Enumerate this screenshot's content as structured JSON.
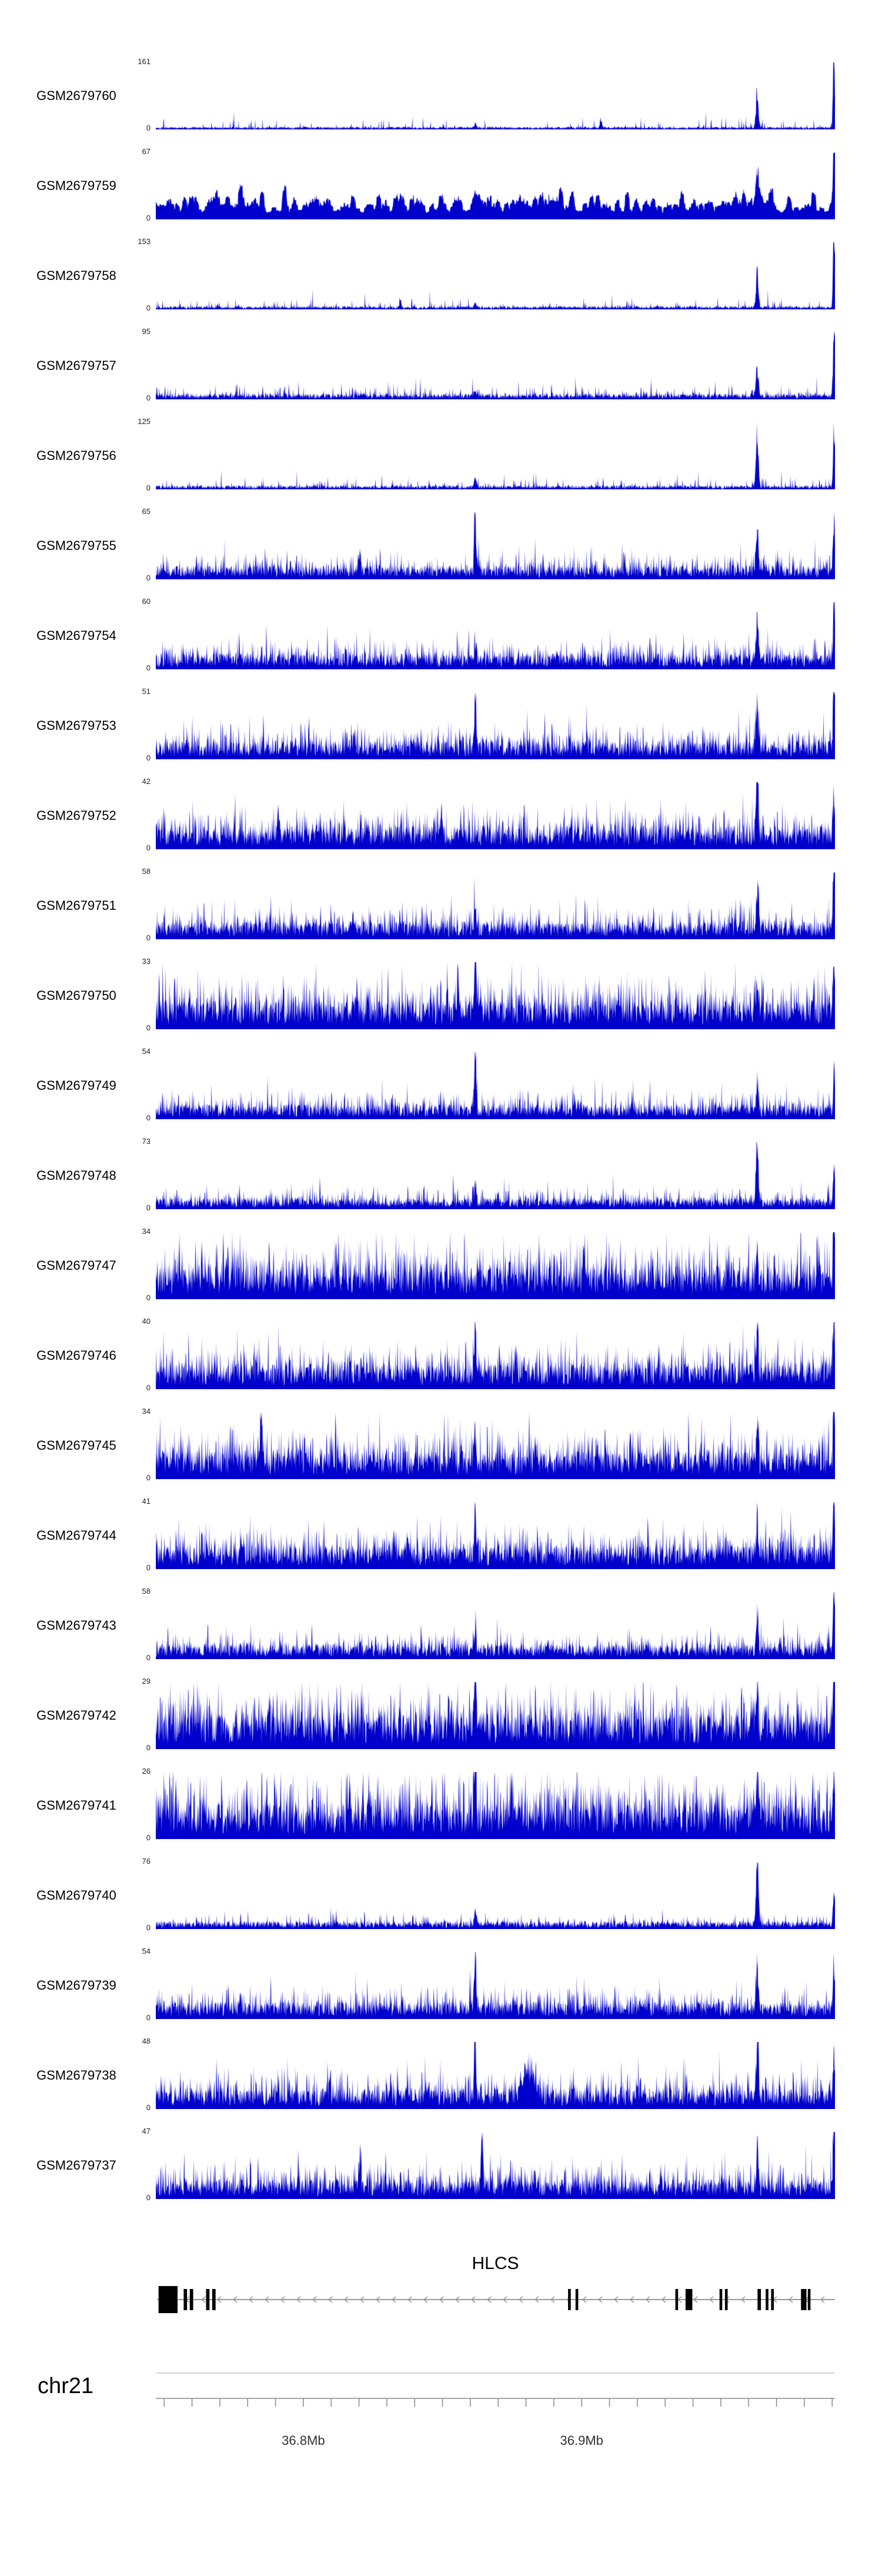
{
  "chromosome": {
    "label": "chr21"
  },
  "gene": {
    "name": "HLCS",
    "strand": "-",
    "exons": [
      {
        "x": 0.004,
        "w": 0.028,
        "tall": true
      },
      {
        "x": 0.041,
        "w": 0.005,
        "tall": false
      },
      {
        "x": 0.05,
        "w": 0.005,
        "tall": false
      },
      {
        "x": 0.074,
        "w": 0.005,
        "tall": false
      },
      {
        "x": 0.083,
        "w": 0.005,
        "tall": false
      },
      {
        "x": 0.607,
        "w": 0.004,
        "tall": false
      },
      {
        "x": 0.618,
        "w": 0.004,
        "tall": false
      },
      {
        "x": 0.765,
        "w": 0.004,
        "tall": false
      },
      {
        "x": 0.78,
        "w": 0.01,
        "tall": false
      },
      {
        "x": 0.83,
        "w": 0.004,
        "tall": false
      },
      {
        "x": 0.838,
        "w": 0.004,
        "tall": false
      },
      {
        "x": 0.886,
        "w": 0.005,
        "tall": false
      },
      {
        "x": 0.898,
        "w": 0.004,
        "tall": false
      },
      {
        "x": 0.906,
        "w": 0.004,
        "tall": false
      },
      {
        "x": 0.95,
        "w": 0.008,
        "tall": false
      },
      {
        "x": 0.96,
        "w": 0.004,
        "tall": false
      }
    ]
  },
  "chart_data": {
    "type": "area",
    "signal_color": "#0000CC",
    "x_axis": {
      "chromosome": "chr21",
      "start_mb": 36.747,
      "end_mb": 36.991,
      "tick_step_mb": 0.01,
      "labels": [
        {
          "text": "36.8Mb",
          "mb": 36.8
        },
        {
          "text": "36.9Mb",
          "mb": 36.9
        }
      ]
    },
    "tracks": [
      {
        "label": "GSM2679760",
        "ymax": 161,
        "ymin": 0,
        "profile": {
          "seed": 101,
          "base": 0.025,
          "spike_prob": 0.05,
          "spike_h": 0.09,
          "smooth": 0,
          "peaks": [
            {
              "x": 0.885,
              "h": 0.55,
              "w": 0.0025
            },
            {
              "x": 0.998,
              "h": 1.2,
              "w": 0.0018
            },
            {
              "x": 0.655,
              "h": 0.12,
              "w": 0.002
            },
            {
              "x": 0.47,
              "h": 0.07,
              "w": 0.002
            }
          ]
        }
      },
      {
        "label": "GSM2679759",
        "ymax": 67,
        "ymin": 0,
        "profile": {
          "seed": 102,
          "base": 0.13,
          "spike_prob": 0.18,
          "spike_h": 0.55,
          "smooth": 5,
          "peaks": [
            {
              "x": 0.885,
              "h": 0.55,
              "w": 0.003
            },
            {
              "x": 0.998,
              "h": 1.1,
              "w": 0.002
            },
            {
              "x": 0.47,
              "h": 0.2,
              "w": 0.004
            }
          ]
        }
      },
      {
        "label": "GSM2679758",
        "ymax": 153,
        "ymin": 0,
        "profile": {
          "seed": 103,
          "base": 0.03,
          "spike_prob": 0.07,
          "spike_h": 0.08,
          "smooth": 0,
          "peaks": [
            {
              "x": 0.885,
              "h": 0.52,
              "w": 0.0025
            },
            {
              "x": 0.998,
              "h": 1.2,
              "w": 0.0018
            },
            {
              "x": 0.36,
              "h": 0.1,
              "w": 0.002
            },
            {
              "x": 0.47,
              "h": 0.08,
              "w": 0.002
            }
          ]
        }
      },
      {
        "label": "GSM2679757",
        "ymax": 95,
        "ymin": 0,
        "profile": {
          "seed": 104,
          "base": 0.05,
          "spike_prob": 0.14,
          "spike_h": 0.09,
          "smooth": 0,
          "peaks": [
            {
              "x": 0.885,
              "h": 0.45,
              "w": 0.0025
            },
            {
              "x": 0.998,
              "h": 1.15,
              "w": 0.0018
            },
            {
              "x": 0.47,
              "h": 0.1,
              "w": 0.002
            }
          ]
        }
      },
      {
        "label": "GSM2679756",
        "ymax": 125,
        "ymin": 0,
        "profile": {
          "seed": 105,
          "base": 0.035,
          "spike_prob": 0.1,
          "spike_h": 0.08,
          "smooth": 0,
          "peaks": [
            {
              "x": 0.885,
              "h": 0.85,
              "w": 0.0025
            },
            {
              "x": 0.998,
              "h": 0.95,
              "w": 0.0018
            },
            {
              "x": 0.47,
              "h": 0.12,
              "w": 0.0025
            }
          ]
        }
      },
      {
        "label": "GSM2679755",
        "ymax": 65,
        "ymin": 0,
        "profile": {
          "seed": 106,
          "base": 0.12,
          "spike_prob": 0.25,
          "spike_h": 0.15,
          "smooth": 0,
          "peaks": [
            {
              "x": 0.47,
              "h": 0.88,
              "w": 0.002
            },
            {
              "x": 0.885,
              "h": 0.55,
              "w": 0.0025
            },
            {
              "x": 0.998,
              "h": 0.85,
              "w": 0.0018
            },
            {
              "x": 0.3,
              "h": 0.3,
              "w": 0.002
            }
          ]
        }
      },
      {
        "label": "GSM2679754",
        "ymax": 60,
        "ymin": 0,
        "profile": {
          "seed": 107,
          "base": 0.14,
          "spike_prob": 0.28,
          "spike_h": 0.15,
          "smooth": 0,
          "peaks": [
            {
              "x": 0.885,
              "h": 0.55,
              "w": 0.0025
            },
            {
              "x": 0.998,
              "h": 1.05,
              "w": 0.0018
            },
            {
              "x": 0.47,
              "h": 0.32,
              "w": 0.002
            }
          ]
        }
      },
      {
        "label": "GSM2679753",
        "ymax": 51,
        "ymin": 0,
        "profile": {
          "seed": 108,
          "base": 0.16,
          "spike_prob": 0.3,
          "spike_h": 0.17,
          "smooth": 0,
          "peaks": [
            {
              "x": 0.47,
              "h": 0.8,
              "w": 0.002
            },
            {
              "x": 0.885,
              "h": 0.5,
              "w": 0.0025
            },
            {
              "x": 0.998,
              "h": 1.1,
              "w": 0.0018
            }
          ]
        }
      },
      {
        "label": "GSM2679752",
        "ymax": 42,
        "ymin": 0,
        "profile": {
          "seed": 109,
          "base": 0.2,
          "spike_prob": 0.3,
          "spike_h": 0.2,
          "smooth": 0,
          "peaks": [
            {
              "x": 0.885,
              "h": 0.9,
              "w": 0.0025
            },
            {
              "x": 0.998,
              "h": 0.65,
              "w": 0.0018
            },
            {
              "x": 0.18,
              "h": 0.45,
              "w": 0.0025
            },
            {
              "x": 0.42,
              "h": 0.4,
              "w": 0.0025
            }
          ]
        }
      },
      {
        "label": "GSM2679751",
        "ymax": 58,
        "ymin": 0,
        "profile": {
          "seed": 110,
          "base": 0.15,
          "spike_prob": 0.28,
          "spike_h": 0.16,
          "smooth": 0,
          "peaks": [
            {
              "x": 0.885,
              "h": 0.5,
              "w": 0.0025
            },
            {
              "x": 0.998,
              "h": 1.1,
              "w": 0.0018
            },
            {
              "x": 0.47,
              "h": 0.35,
              "w": 0.002
            }
          ]
        }
      },
      {
        "label": "GSM2679750",
        "ymax": 33,
        "ymin": 0,
        "profile": {
          "seed": 111,
          "base": 0.25,
          "spike_prob": 0.35,
          "spike_h": 0.24,
          "smooth": 0,
          "peaks": [
            {
              "x": 0.47,
              "h": 1.0,
              "w": 0.002
            },
            {
              "x": 0.445,
              "h": 0.6,
              "w": 0.002
            },
            {
              "x": 0.998,
              "h": 0.75,
              "w": 0.0018
            },
            {
              "x": 0.885,
              "h": 0.45,
              "w": 0.002
            }
          ]
        }
      },
      {
        "label": "GSM2679749",
        "ymax": 54,
        "ymin": 0,
        "profile": {
          "seed": 112,
          "base": 0.13,
          "spike_prob": 0.25,
          "spike_h": 0.15,
          "smooth": 0,
          "peaks": [
            {
              "x": 0.47,
              "h": 0.95,
              "w": 0.002
            },
            {
              "x": 0.998,
              "h": 0.6,
              "w": 0.0018
            },
            {
              "x": 0.885,
              "h": 0.38,
              "w": 0.002
            }
          ]
        }
      },
      {
        "label": "GSM2679748",
        "ymax": 73,
        "ymin": 0,
        "profile": {
          "seed": 113,
          "base": 0.1,
          "spike_prob": 0.22,
          "spike_h": 0.12,
          "smooth": 0,
          "peaks": [
            {
              "x": 0.885,
              "h": 0.88,
              "w": 0.0025
            },
            {
              "x": 0.47,
              "h": 0.3,
              "w": 0.002
            },
            {
              "x": 0.998,
              "h": 0.55,
              "w": 0.0018
            }
          ]
        }
      },
      {
        "label": "GSM2679747",
        "ymax": 34,
        "ymin": 0,
        "profile": {
          "seed": 114,
          "base": 0.28,
          "spike_prob": 0.38,
          "spike_h": 0.25,
          "smooth": 0,
          "peaks": [
            {
              "x": 0.998,
              "h": 1.1,
              "w": 0.0018
            },
            {
              "x": 0.63,
              "h": 0.5,
              "w": 0.002
            },
            {
              "x": 0.885,
              "h": 0.45,
              "w": 0.002
            }
          ]
        }
      },
      {
        "label": "GSM2679746",
        "ymax": 40,
        "ymin": 0,
        "profile": {
          "seed": 115,
          "base": 0.22,
          "spike_prob": 0.34,
          "spike_h": 0.22,
          "smooth": 0,
          "peaks": [
            {
              "x": 0.47,
              "h": 0.8,
              "w": 0.002
            },
            {
              "x": 0.998,
              "h": 1.05,
              "w": 0.0018
            },
            {
              "x": 0.885,
              "h": 0.5,
              "w": 0.002
            }
          ]
        }
      },
      {
        "label": "GSM2679745",
        "ymax": 34,
        "ymin": 0,
        "profile": {
          "seed": 116,
          "base": 0.24,
          "spike_prob": 0.35,
          "spike_h": 0.24,
          "smooth": 0,
          "peaks": [
            {
              "x": 0.155,
              "h": 0.8,
              "w": 0.002
            },
            {
              "x": 0.998,
              "h": 1.05,
              "w": 0.0018
            },
            {
              "x": 0.885,
              "h": 0.6,
              "w": 0.002
            },
            {
              "x": 0.47,
              "h": 0.5,
              "w": 0.002
            }
          ]
        }
      },
      {
        "label": "GSM2679744",
        "ymax": 41,
        "ymin": 0,
        "profile": {
          "seed": 117,
          "base": 0.2,
          "spike_prob": 0.32,
          "spike_h": 0.2,
          "smooth": 0,
          "peaks": [
            {
              "x": 0.47,
              "h": 0.72,
              "w": 0.002
            },
            {
              "x": 0.885,
              "h": 0.6,
              "w": 0.002
            },
            {
              "x": 0.998,
              "h": 1.05,
              "w": 0.0018
            }
          ]
        }
      },
      {
        "label": "GSM2679743",
        "ymax": 58,
        "ymin": 0,
        "profile": {
          "seed": 118,
          "base": 0.13,
          "spike_prob": 0.25,
          "spike_h": 0.14,
          "smooth": 0,
          "peaks": [
            {
              "x": 0.885,
              "h": 0.5,
              "w": 0.002
            },
            {
              "x": 0.998,
              "h": 1.1,
              "w": 0.0018
            },
            {
              "x": 0.47,
              "h": 0.3,
              "w": 0.002
            }
          ]
        }
      },
      {
        "label": "GSM2679742",
        "ymax": 29,
        "ymin": 0,
        "profile": {
          "seed": 119,
          "base": 0.3,
          "spike_prob": 0.4,
          "spike_h": 0.27,
          "smooth": 0,
          "peaks": [
            {
              "x": 0.47,
              "h": 1.0,
              "w": 0.002
            },
            {
              "x": 0.998,
              "h": 1.05,
              "w": 0.0018
            },
            {
              "x": 0.885,
              "h": 0.5,
              "w": 0.002
            }
          ]
        }
      },
      {
        "label": "GSM2679741",
        "ymax": 26,
        "ymin": 0,
        "profile": {
          "seed": 120,
          "base": 0.3,
          "spike_prob": 0.4,
          "spike_h": 0.3,
          "smooth": 0,
          "peaks": [
            {
              "x": 0.47,
              "h": 1.05,
              "w": 0.002
            },
            {
              "x": 0.998,
              "h": 0.95,
              "w": 0.0018
            },
            {
              "x": 0.885,
              "h": 0.6,
              "w": 0.002
            }
          ]
        }
      },
      {
        "label": "GSM2679740",
        "ymax": 76,
        "ymin": 0,
        "profile": {
          "seed": 121,
          "base": 0.07,
          "spike_prob": 0.15,
          "spike_h": 0.08,
          "smooth": 0,
          "peaks": [
            {
              "x": 0.885,
              "h": 0.98,
              "w": 0.0025
            },
            {
              "x": 0.998,
              "h": 0.55,
              "w": 0.0018
            },
            {
              "x": 0.47,
              "h": 0.2,
              "w": 0.002
            }
          ]
        }
      },
      {
        "label": "GSM2679739",
        "ymax": 54,
        "ymin": 0,
        "profile": {
          "seed": 122,
          "base": 0.15,
          "spike_prob": 0.28,
          "spike_h": 0.16,
          "smooth": 0,
          "peaks": [
            {
              "x": 0.47,
              "h": 1.0,
              "w": 0.002
            },
            {
              "x": 0.885,
              "h": 0.6,
              "w": 0.0025
            },
            {
              "x": 0.998,
              "h": 0.9,
              "w": 0.0018
            }
          ]
        }
      },
      {
        "label": "GSM2679738",
        "ymax": 48,
        "ymin": 0,
        "profile": {
          "seed": 123,
          "base": 0.18,
          "spike_prob": 0.3,
          "spike_h": 0.18,
          "smooth": 0,
          "peaks": [
            {
              "x": 0.47,
              "h": 1.0,
              "w": 0.002
            },
            {
              "x": 0.55,
              "h": 0.4,
              "w": 0.012
            },
            {
              "x": 0.885,
              "h": 0.8,
              "w": 0.0025
            },
            {
              "x": 0.998,
              "h": 0.65,
              "w": 0.0018
            }
          ]
        }
      },
      {
        "label": "GSM2679737",
        "ymax": 47,
        "ymin": 0,
        "profile": {
          "seed": 124,
          "base": 0.17,
          "spike_prob": 0.3,
          "spike_h": 0.18,
          "smooth": 0,
          "peaks": [
            {
              "x": 0.48,
              "h": 0.9,
              "w": 0.002
            },
            {
              "x": 0.3,
              "h": 0.5,
              "w": 0.002
            },
            {
              "x": 0.885,
              "h": 0.5,
              "w": 0.002
            },
            {
              "x": 0.998,
              "h": 1.1,
              "w": 0.0018
            }
          ]
        }
      }
    ]
  }
}
